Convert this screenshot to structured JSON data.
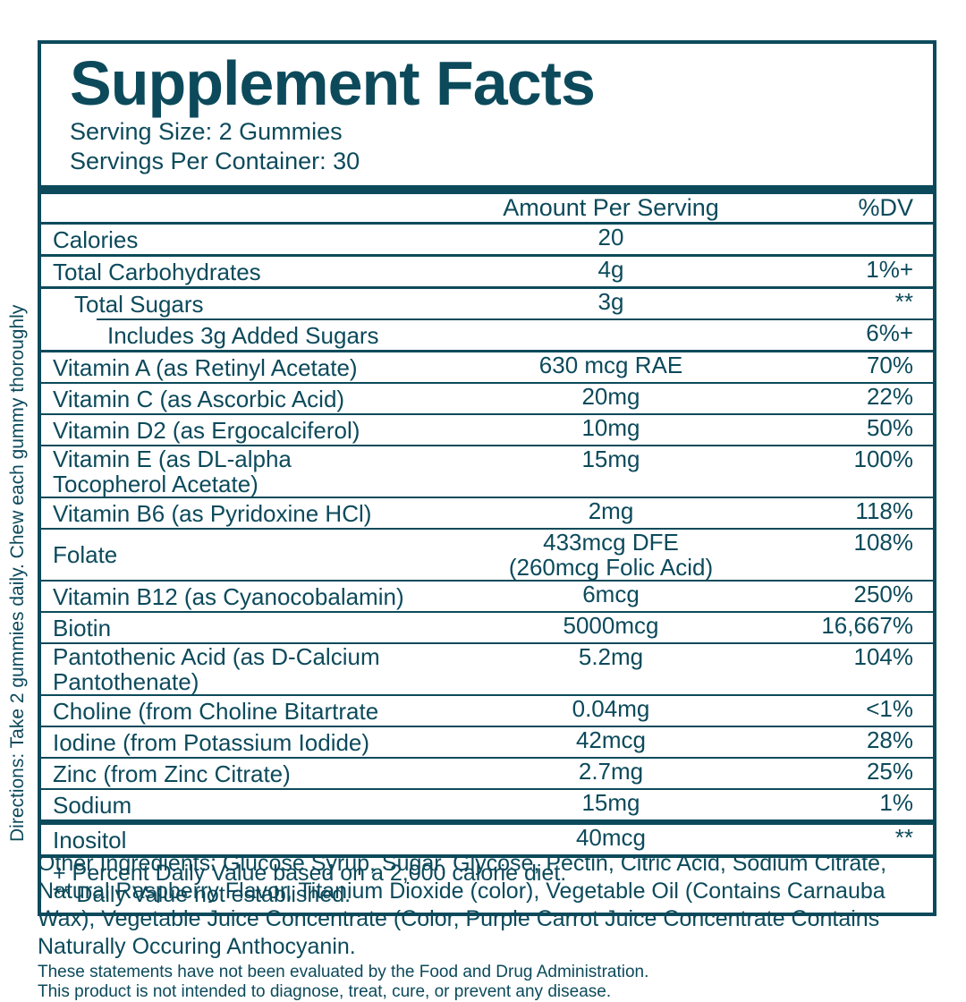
{
  "colors": {
    "accent": "#0c4a5b",
    "background": "#ffffff"
  },
  "directions": "Directions: Take 2 gummies daily. Chew each gummy thoroughly",
  "header": {
    "title": "Supplement Facts",
    "serving_size": "Serving Size: 2 Gummies",
    "servings_per_container": "Servings Per Container: 30"
  },
  "table": {
    "columns": {
      "amount": "Amount Per Serving",
      "dv": "%DV"
    },
    "rows": [
      {
        "name": "Calories",
        "amount": "20",
        "dv": ""
      },
      {
        "name": "Total Carbohydrates",
        "amount": "4g",
        "dv": "1%+"
      },
      {
        "name": "Total Sugars",
        "amount": "3g",
        "dv": "**"
      },
      {
        "name": "Includes 3g Added Sugars",
        "amount": "",
        "dv": "6%+"
      },
      {
        "name": "Vitamin A (as Retinyl Acetate)",
        "amount": "630 mcg RAE",
        "dv": "70%"
      },
      {
        "name": "Vitamin C (as Ascorbic Acid)",
        "amount": "20mg",
        "dv": "22%"
      },
      {
        "name": "Vitamin D2 (as Ergocalciferol)",
        "amount": "10mg",
        "dv": "50%"
      },
      {
        "name": "Vitamin E (as DL-alpha Tocopherol Acetate)",
        "amount": "15mg",
        "dv": "100%"
      },
      {
        "name": "Vitamin B6 (as Pyridoxine HCl)",
        "amount": "2mg",
        "dv": "118%"
      },
      {
        "name": "Folate",
        "amount": "433mcg DFE",
        "amount2": "(260mcg Folic Acid)",
        "dv": "108%"
      },
      {
        "name": "Vitamin B12 (as Cyanocobalamin)",
        "amount": "6mcg",
        "dv": "250%"
      },
      {
        "name": "Biotin",
        "amount": "5000mcg",
        "dv": "16,667%"
      },
      {
        "name": "Pantothenic Acid (as D-Calcium Pantothenate)",
        "amount": "5.2mg",
        "dv": "104%"
      },
      {
        "name": "Choline (from Choline Bitartrate",
        "amount": "0.04mg",
        "dv": "<1%"
      },
      {
        "name": "Iodine (from Potassium Iodide)",
        "amount": "42mcg",
        "dv": "28%"
      },
      {
        "name": "Zinc (from Zinc Citrate)",
        "amount": "2.7mg",
        "dv": "25%"
      },
      {
        "name": "Sodium",
        "amount": "15mg",
        "dv": "1%"
      }
    ],
    "extra_row": {
      "name": "Inositol",
      "amount": "40mcg",
      "dv": "**"
    },
    "footnotes": [
      "+ Percent Daily Value based on a 2,000 calorie diet.",
      "** Daily Value not established."
    ]
  },
  "other_ingredients": "Other Ingredients: Glucose Syrup, Sugar, Glycose, Pectin, Citric Acid, Sodium Citrate, Natural Raspberry Flavor, Titanium Dioxide (color), Vegetable Oil (Contains Carnauba Wax), Vegetable Juice Concentrate (Color, Purple Carrot Juice Concentrate Contains Naturally Occuring Anthocyanin.",
  "disclaimer": [
    "These statements have not been evaluated by the Food and Drug Administration.",
    "This product is not intended to diagnose, treat, cure, or prevent any disease."
  ]
}
